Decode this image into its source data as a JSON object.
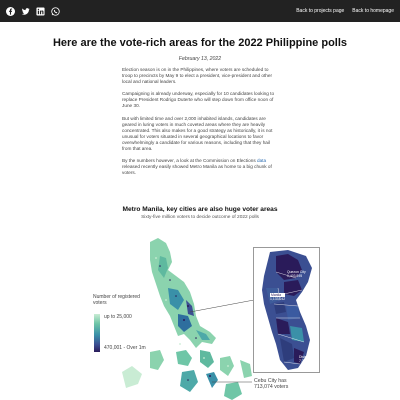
{
  "header": {
    "social_icons": [
      "facebook-icon",
      "twitter-icon",
      "linkedin-icon",
      "whatsapp-icon"
    ],
    "nav": {
      "projects_label": "Back to projects page",
      "homepage_label": "Back to homepage"
    }
  },
  "article": {
    "title": "Here are the vote-rich areas for the 2022 Philippine polls",
    "date": "February 13, 2022",
    "paragraphs": {
      "p1": "Election season is on in the Philippines, where voters are scheduled to troop to precincts by May 9 to elect a president, vice-president and other local and national leaders.",
      "p2": "Campaigning is already underway, especially for 10 candidates looking to replace President Rodrigo Duterte who will step down from office noon of June 30.",
      "p3": "But with limited time and over 2,000 inhabited islands, candidates are geared in luring voters in much coveted areas where they are heavily concentrated. This also makes for a good strategy as historically, it is not unusual for voters situated in several geographical locations to favor overwhelmingly a candidate for various reasons, including that they hail from that area.",
      "p4_before": "By the numbers however, a look at the Commission on Elections ",
      "p4_link": "data",
      "p4_after": " released recently easily showed Metro Manila as home to a big chunk of voters."
    }
  },
  "map": {
    "title": "Metro Manila, key cities are also huge voter areas",
    "subtitle": "Sixty-five million voters to decide outcome of 2022 polls",
    "legend": {
      "title": "Number of registered voters",
      "low_label": "up to 25,000",
      "high_label": "470,001 - Over 1m"
    },
    "inset_labels": {
      "quezon_city": "Quezon City\n1,403,895",
      "manila_name": "Manila",
      "manila_value": "1,133,042",
      "district": "District NCR\n7,301,093"
    },
    "cebu_annotation": "Cebu City has 713,074 voters",
    "colors": {
      "lightest": "#c9ecd4",
      "light": "#6fc6a7",
      "mid": "#3a90a8",
      "dark": "#3b4f92",
      "darkest": "#2a1b5a"
    }
  }
}
